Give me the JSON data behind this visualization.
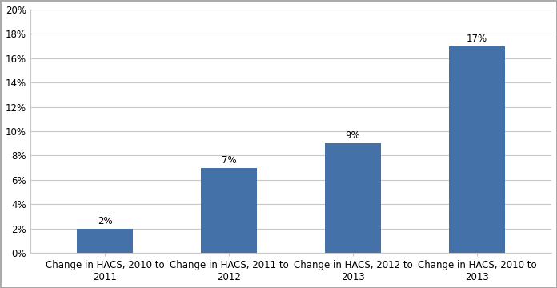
{
  "categories": [
    "Change in HACS, 2010 to\n2011",
    "Change in HACS, 2011 to\n2012",
    "Change in HACS, 2012 to\n2013",
    "Change in HACS, 2010 to\n2013"
  ],
  "values": [
    0.02,
    0.07,
    0.09,
    0.17
  ],
  "labels": [
    "2%",
    "7%",
    "9%",
    "17%"
  ],
  "bar_color": "#4472A8",
  "ylim": [
    0,
    0.2
  ],
  "yticks": [
    0.0,
    0.02,
    0.04,
    0.06,
    0.08,
    0.1,
    0.12,
    0.14,
    0.16,
    0.18,
    0.2
  ],
  "ytick_labels": [
    "0%",
    "2%",
    "4%",
    "6%",
    "8%",
    "10%",
    "12%",
    "14%",
    "16%",
    "18%",
    "20%"
  ],
  "grid_color": "#C8C8C8",
  "background_color": "#FFFFFF",
  "outer_border_color": "#AAAAAA",
  "label_fontsize": 8.5,
  "tick_fontsize": 8.5,
  "bar_width": 0.45
}
